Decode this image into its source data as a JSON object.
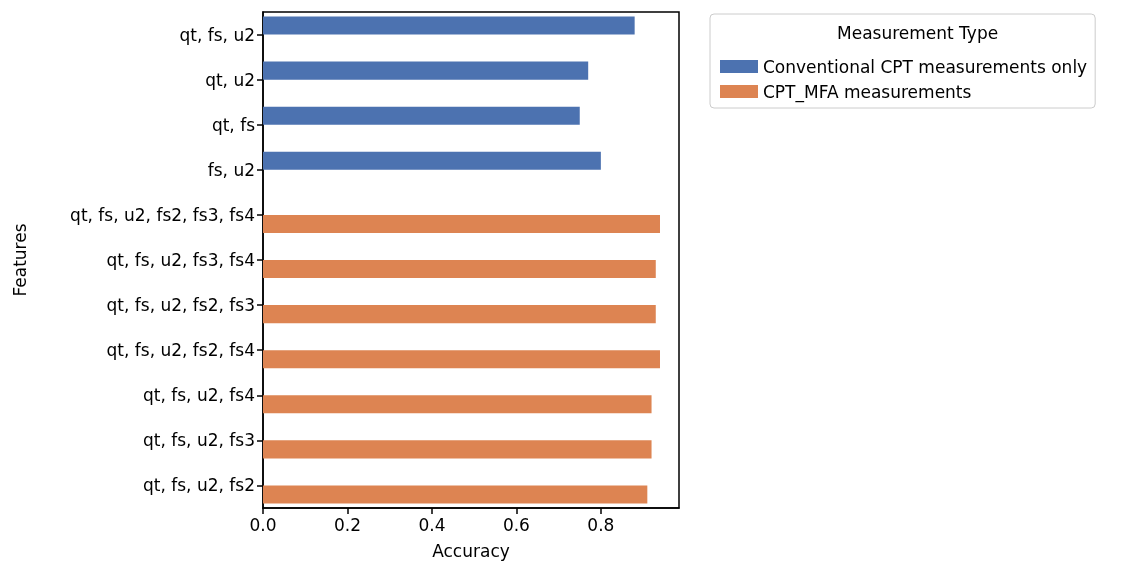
{
  "chart_data": {
    "type": "bar",
    "orientation": "horizontal",
    "xlabel": "Accuracy",
    "ylabel": "Features",
    "legend_title": "Measurement Type",
    "legend": "top right",
    "categories": [
      "qt, fs, u2",
      "qt, u2",
      "qt, fs",
      "fs, u2",
      "qt, fs, u2, fs2, fs3, fs4",
      "qt, fs, u2, fs3, fs4",
      "qt, fs, u2, fs2, fs3",
      "qt, fs, u2, fs2, fs4",
      "qt, fs, u2, fs4",
      "qt, fs, u2, fs3",
      "qt, fs, u2, fs2"
    ],
    "series": [
      {
        "name": "Conventional CPT measurements only",
        "color": "#4c72b0",
        "values": [
          0.88,
          0.77,
          0.75,
          0.8,
          null,
          null,
          null,
          null,
          null,
          null,
          null
        ]
      },
      {
        "name": "CPT_MFA measurements",
        "color": "#dd8452",
        "values": [
          null,
          null,
          null,
          null,
          0.94,
          0.93,
          0.93,
          0.94,
          0.92,
          0.92,
          0.91
        ]
      }
    ],
    "xlim": [
      0,
      0.985
    ],
    "xticks": [
      {
        "value": 0,
        "label": "0.0"
      },
      {
        "value": 0.2,
        "label": "0.2"
      },
      {
        "value": 0.4,
        "label": "0.4"
      },
      {
        "value": 0.6,
        "label": "0.6"
      },
      {
        "value": 0.8,
        "label": "0.8"
      }
    ],
    "grid": false
  }
}
